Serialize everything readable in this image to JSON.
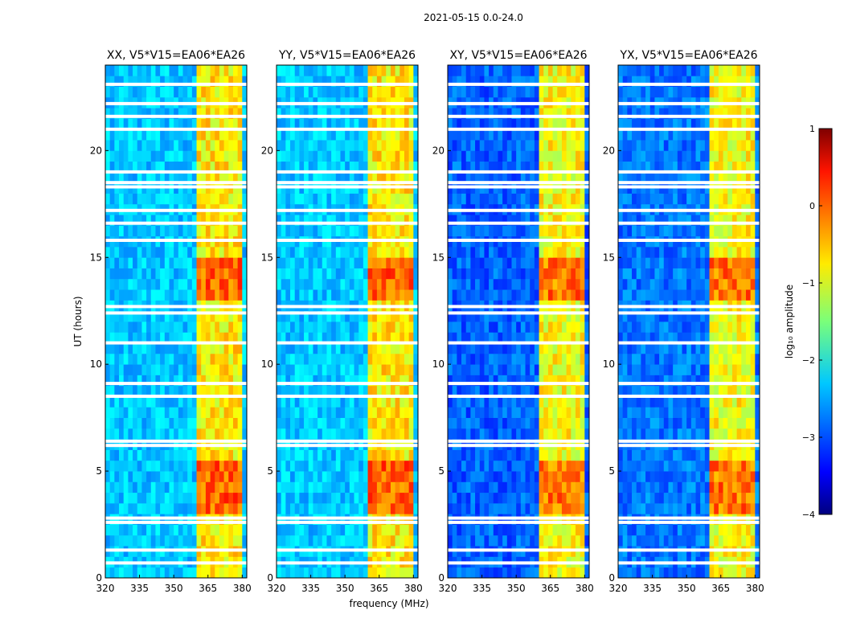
{
  "figure": {
    "suptitle": "2021-05-15 0.0-24.0"
  },
  "chart_data": {
    "type": "heatmap",
    "shared": {
      "xlabel": "frequency (MHz)",
      "ylabel": "UT (hours)",
      "xlim": [
        320,
        382
      ],
      "ylim": [
        0,
        24
      ],
      "xticks": [
        320,
        335,
        350,
        365,
        380
      ],
      "yticks": [
        0,
        5,
        10,
        15,
        20
      ],
      "colorbar": {
        "label": "log₁₀ amplitude",
        "range": [
          -4,
          1
        ],
        "ticks": [
          1,
          0,
          -1,
          -2,
          -3,
          -4
        ],
        "tick_labels": [
          "1",
          "0",
          "−1",
          "−2",
          "−3",
          "−4"
        ],
        "colormap": "jet"
      },
      "rfi_band_mhz": [
        360,
        380
      ],
      "strong_rfi_hours": [
        [
          3.2,
          5.5
        ],
        [
          13.0,
          15.2
        ]
      ],
      "flagged_hours": [
        0.7,
        1.3,
        2.6,
        2.8,
        6.2,
        6.4,
        8.5,
        9.1,
        11.0,
        12.4,
        12.7,
        15.8,
        16.6,
        17.2,
        18.3,
        18.5,
        19.0,
        21.0,
        21.6,
        22.2,
        23.1
      ]
    },
    "panels": [
      {
        "title": "XX, V5*V15=EA06*EA26",
        "polarization": "XX",
        "background_level": -2.4
      },
      {
        "title": "YY, V5*V15=EA06*EA26",
        "polarization": "YY",
        "background_level": -2.4
      },
      {
        "title": "XY, V5*V15=EA06*EA26",
        "polarization": "XY",
        "background_level": -2.9
      },
      {
        "title": "YX, V5*V15=EA06*EA26",
        "polarization": "YX",
        "background_level": -2.8
      }
    ]
  },
  "colors": {
    "background_blue": "#1a57ff",
    "light_blue": "#2fc8ff",
    "rfi_yellow": "#ffdd00",
    "rfi_red": "#d60000"
  }
}
